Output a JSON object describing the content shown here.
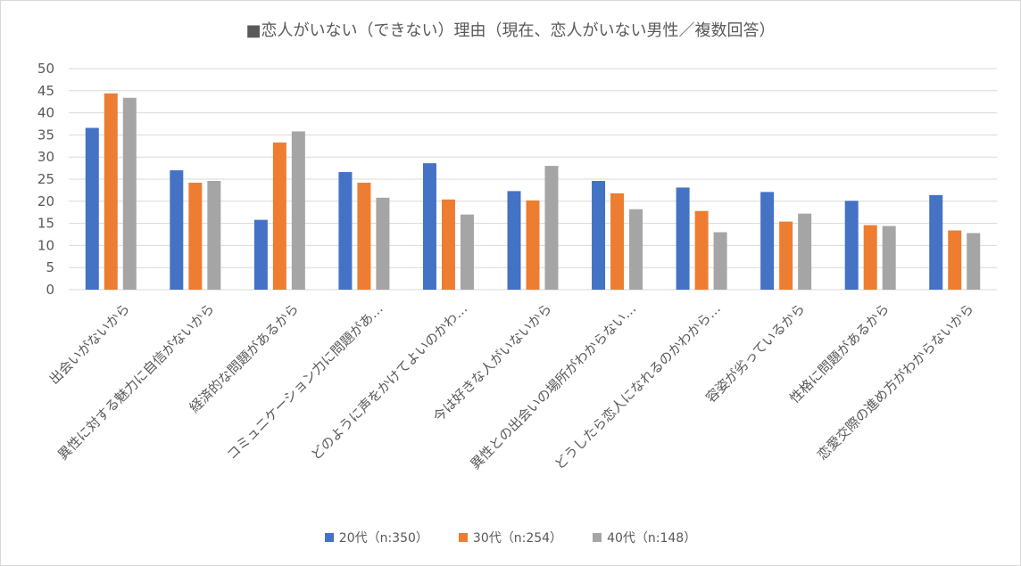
{
  "chart_data": {
    "type": "bar",
    "title": "■恋人がいない（できない）理由（現在、恋人がいない男性／複数回答）",
    "xlabel": "",
    "ylabel": "",
    "ylim": [
      0,
      50
    ],
    "yticks": [
      0,
      5,
      10,
      15,
      20,
      25,
      30,
      35,
      40,
      45,
      50
    ],
    "grid": true,
    "legend_position": "bottom",
    "categories": [
      "出会いがないから",
      "異性に対する魅力に自信がないから",
      "経済的な問題があるから",
      "コミュニケーション力に問題があ…",
      "どのように声をかけてよいのかわ…",
      "今は好きな人がいないから",
      "異性との出会いの場所がわからない…",
      "どうしたら恋人になれるのかわから…",
      "容姿が劣っているから",
      "性格に問題があるから",
      "恋愛交際の進め方がわからないから"
    ],
    "series": [
      {
        "name": "20代（n:350）",
        "color": "#4472c4",
        "values": [
          36.6,
          27.0,
          15.8,
          26.6,
          28.6,
          22.3,
          24.6,
          23.1,
          22.1,
          20.1,
          21.4
        ]
      },
      {
        "name": "30代（n:254）",
        "color": "#ed7d31",
        "values": [
          44.4,
          24.2,
          33.3,
          24.2,
          20.4,
          20.2,
          21.8,
          17.8,
          15.4,
          14.6,
          13.4
        ]
      },
      {
        "name": "40代（n:148）",
        "color": "#a5a5a5",
        "values": [
          43.4,
          24.6,
          35.8,
          20.8,
          17.0,
          28.0,
          18.2,
          13.0,
          17.2,
          14.4,
          12.8
        ]
      }
    ]
  }
}
